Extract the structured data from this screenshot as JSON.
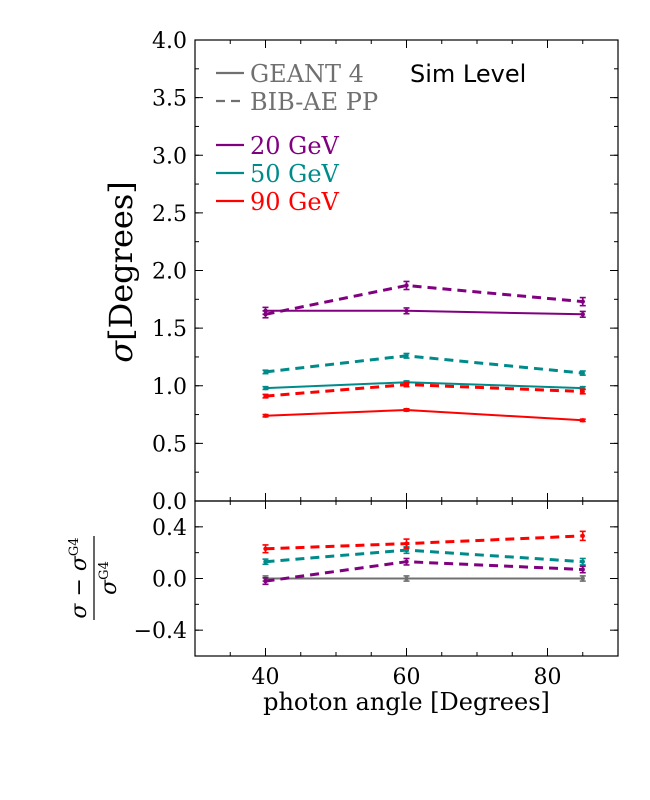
{
  "chart_data": [
    {
      "type": "line",
      "panel": "main",
      "ylabel_symbol": "σ",
      "ylabel_unit": "[Degrees]",
      "xlabel": "",
      "xlim": [
        30,
        90
      ],
      "ylim": [
        0.0,
        4.0
      ],
      "yticks": [
        0.0,
        0.5,
        1.0,
        1.5,
        2.0,
        2.5,
        3.0,
        3.5,
        4.0
      ],
      "ytick_labels": [
        "0.0",
        "0.5",
        "1.0",
        "1.5",
        "2.0",
        "2.5",
        "3.0",
        "3.5",
        "4.0"
      ],
      "annotation": "Sim Level",
      "legend_styles": [
        {
          "label": "GEANT 4",
          "style": "solid",
          "color": "#707070"
        },
        {
          "label": "BIB-AE PP",
          "style": "dashed",
          "color": "#707070"
        }
      ],
      "legend_energies": [
        {
          "label": "20 GeV",
          "color": "#800080"
        },
        {
          "label": "50 GeV",
          "color": "#008b8b"
        },
        {
          "label": "90 GeV",
          "color": "#ff0000"
        }
      ],
      "series": [
        {
          "name": "20 GeV GEANT 4",
          "color": "#800080",
          "style": "solid",
          "x": [
            40,
            60,
            85
          ],
          "y": [
            1.65,
            1.65,
            1.62
          ],
          "err": [
            0.03,
            0.025,
            0.025
          ]
        },
        {
          "name": "20 GeV BIB-AE PP",
          "color": "#800080",
          "style": "dashed",
          "x": [
            40,
            60,
            85
          ],
          "y": [
            1.62,
            1.87,
            1.73
          ],
          "err": [
            0.03,
            0.035,
            0.035
          ]
        },
        {
          "name": "50 GeV GEANT 4",
          "color": "#008b8b",
          "style": "solid",
          "x": [
            40,
            60,
            85
          ],
          "y": [
            0.98,
            1.03,
            0.98
          ],
          "err": [
            0.012,
            0.012,
            0.012
          ]
        },
        {
          "name": "50 GeV BIB-AE PP",
          "color": "#008b8b",
          "style": "dashed",
          "x": [
            40,
            60,
            85
          ],
          "y": [
            1.12,
            1.26,
            1.11
          ],
          "err": [
            0.015,
            0.02,
            0.018
          ]
        },
        {
          "name": "90 GeV GEANT 4",
          "color": "#ff0000",
          "style": "solid",
          "x": [
            40,
            60,
            85
          ],
          "y": [
            0.74,
            0.79,
            0.7
          ],
          "err": [
            0.01,
            0.01,
            0.01
          ]
        },
        {
          "name": "90 GeV BIB-AE PP",
          "color": "#ff0000",
          "style": "dashed",
          "x": [
            40,
            60,
            85
          ],
          "y": [
            0.91,
            1.01,
            0.95
          ],
          "err": [
            0.015,
            0.018,
            0.02
          ]
        }
      ]
    },
    {
      "type": "line",
      "panel": "ratio",
      "xlabel": "photon angle [Degrees]",
      "xlim": [
        30,
        90
      ],
      "ylim": [
        -0.6,
        0.6
      ],
      "xticks": [
        40,
        60,
        80
      ],
      "xtick_labels": [
        "40",
        "60",
        "80"
      ],
      "yticks": [
        -0.4,
        0.0,
        0.4
      ],
      "ytick_labels": [
        "−0.4",
        "0.0",
        "0.4"
      ],
      "ylabel_num": "σ − σ",
      "ylabel_den": "σ",
      "ylabel_sup": "G4",
      "series": [
        {
          "name": "GEANT 4 reference",
          "color": "#707070",
          "style": "solid",
          "x": [
            40,
            60,
            85
          ],
          "y": [
            0.0,
            0.0,
            0.0
          ],
          "err": [
            0.02,
            0.02,
            0.02
          ]
        },
        {
          "name": "20 GeV ratio",
          "color": "#800080",
          "style": "dashed",
          "x": [
            40,
            60,
            85
          ],
          "y": [
            -0.02,
            0.13,
            0.07
          ],
          "err": [
            0.025,
            0.025,
            0.025
          ]
        },
        {
          "name": "50 GeV ratio",
          "color": "#008b8b",
          "style": "dashed",
          "x": [
            40,
            60,
            85
          ],
          "y": [
            0.13,
            0.22,
            0.13
          ],
          "err": [
            0.02,
            0.025,
            0.025
          ]
        },
        {
          "name": "90 GeV ratio",
          "color": "#ff0000",
          "style": "dashed",
          "x": [
            40,
            60,
            85
          ],
          "y": [
            0.23,
            0.27,
            0.33
          ],
          "err": [
            0.03,
            0.035,
            0.035
          ]
        }
      ]
    }
  ]
}
